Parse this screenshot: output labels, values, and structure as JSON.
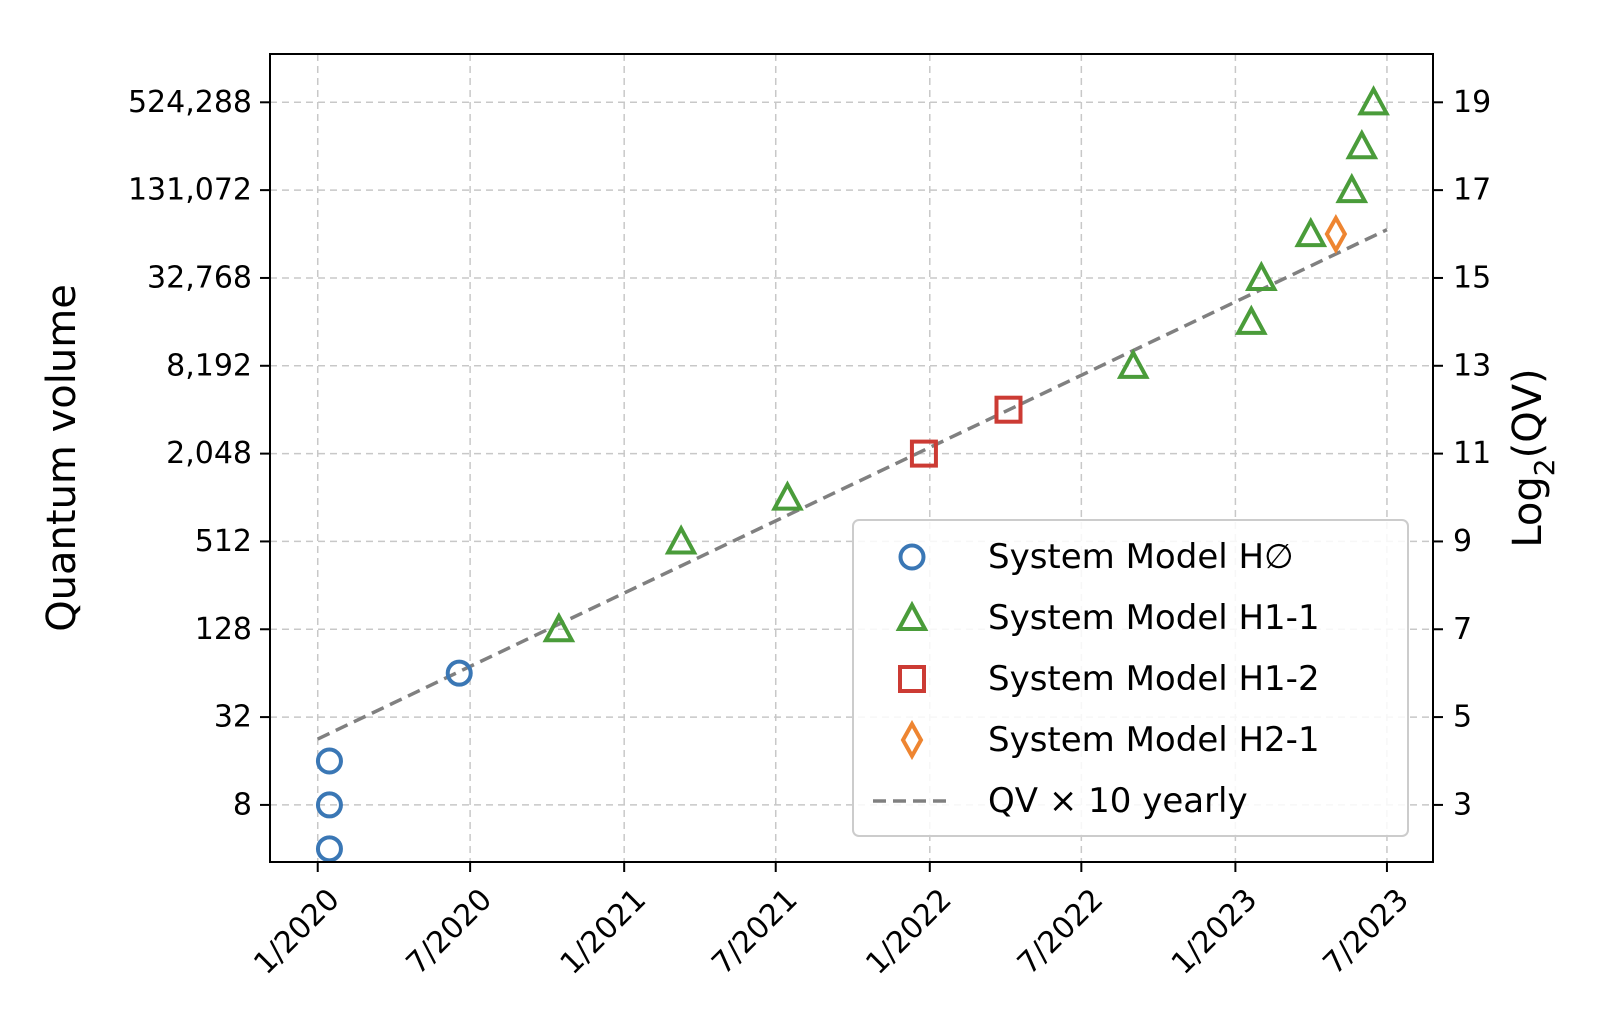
{
  "chart_data": {
    "type": "scatter",
    "y_scale": "log2",
    "x_ticks": [
      "1/2020",
      "7/2020",
      "1/2021",
      "7/2021",
      "1/2022",
      "7/2022",
      "1/2023",
      "7/2023"
    ],
    "y_ticks_left": [
      "8",
      "32",
      "128",
      "512",
      "2,048",
      "8,192",
      "32,768",
      "131,072",
      "524,288"
    ],
    "y_ticks_right": [
      "3",
      "5",
      "7",
      "9",
      "11",
      "13",
      "15",
      "17",
      "19"
    ],
    "ylabel_left": "Quantum volume",
    "ylabel_right": "Log2(QV)",
    "xlim": [
      "2019-11-05",
      "2023-08-25"
    ],
    "ylim_log2": [
      1.7,
      20.1
    ],
    "grid": true,
    "legend_position": "lower-right",
    "series": [
      {
        "name": "System Model H∅",
        "marker": "circle",
        "color": "#3a77b5",
        "points": [
          {
            "x": "2020-01-15",
            "log2_qv": 2
          },
          {
            "x": "2020-01-15",
            "log2_qv": 3
          },
          {
            "x": "2020-01-15",
            "log2_qv": 4
          },
          {
            "x": "2020-06-18",
            "log2_qv": 6
          }
        ]
      },
      {
        "name": "System Model H1-1",
        "marker": "triangle",
        "color": "#4a9c3a",
        "points": [
          {
            "x": "2020-10-15",
            "log2_qv": 7
          },
          {
            "x": "2021-03-10",
            "log2_qv": 9
          },
          {
            "x": "2021-07-15",
            "log2_qv": 10
          },
          {
            "x": "2022-09-01",
            "log2_qv": 13
          },
          {
            "x": "2023-01-20",
            "log2_qv": 14
          },
          {
            "x": "2023-02-01",
            "log2_qv": 15
          },
          {
            "x": "2023-04-01",
            "log2_qv": 16
          },
          {
            "x": "2023-05-20",
            "log2_qv": 17
          },
          {
            "x": "2023-06-01",
            "log2_qv": 18
          },
          {
            "x": "2023-06-15",
            "log2_qv": 19
          }
        ]
      },
      {
        "name": "System Model H1-2",
        "marker": "square",
        "color": "#cc3b34",
        "points": [
          {
            "x": "2021-12-25",
            "log2_qv": 11
          },
          {
            "x": "2022-04-05",
            "log2_qv": 12
          }
        ]
      },
      {
        "name": "System Model H2-1",
        "marker": "diamond",
        "color": "#ee8531",
        "points": [
          {
            "x": "2023-05-01",
            "log2_qv": 16
          }
        ]
      }
    ],
    "trend_line": {
      "name": "QV × 10 yearly",
      "style": "dashed",
      "color": "#808080",
      "start": {
        "x": "2020-01-01",
        "log2_qv": 4.5
      },
      "end": {
        "x": "2023-07-01",
        "log2_qv": 16.1
      }
    }
  }
}
